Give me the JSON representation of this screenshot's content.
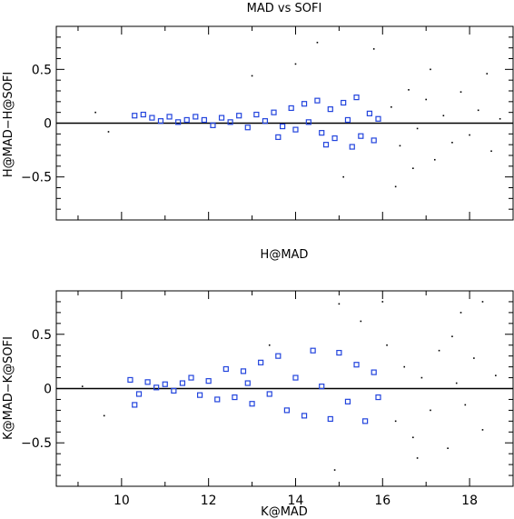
{
  "chart_data": [
    {
      "type": "scatter",
      "title": "MAD vs SOFI",
      "xlabel": "",
      "ylabel": "H@MAD−H@SOFI",
      "xlim": [
        8.5,
        19.0
      ],
      "ylim": [
        -0.9,
        0.9
      ],
      "x_ticks": [
        10,
        12,
        14,
        16,
        18
      ],
      "y_ticks": [
        -0.5,
        0,
        0.5
      ],
      "y_tick_labels": [
        "−0.5",
        "0",
        "0.5"
      ],
      "reference_line_y": 0,
      "series": [
        {
          "marker": "square",
          "points": [
            [
              10.3,
              0.07
            ],
            [
              10.5,
              0.08
            ],
            [
              10.7,
              0.05
            ],
            [
              10.9,
              0.02
            ],
            [
              11.1,
              0.06
            ],
            [
              11.3,
              0.01
            ],
            [
              11.5,
              0.03
            ],
            [
              11.7,
              0.06
            ],
            [
              11.9,
              0.03
            ],
            [
              12.1,
              -0.02
            ],
            [
              12.3,
              0.05
            ],
            [
              12.5,
              0.01
            ],
            [
              12.7,
              0.07
            ],
            [
              12.9,
              -0.04
            ],
            [
              13.1,
              0.08
            ],
            [
              13.3,
              0.02
            ],
            [
              13.5,
              0.1
            ],
            [
              13.7,
              -0.03
            ],
            [
              13.9,
              0.14
            ],
            [
              14.0,
              -0.06
            ],
            [
              14.2,
              0.18
            ],
            [
              14.3,
              0.01
            ],
            [
              14.5,
              0.21
            ],
            [
              14.6,
              -0.09
            ],
            [
              14.8,
              0.13
            ],
            [
              14.9,
              -0.14
            ],
            [
              15.1,
              0.19
            ],
            [
              15.2,
              0.03
            ],
            [
              15.4,
              0.24
            ],
            [
              15.5,
              -0.12
            ],
            [
              15.7,
              0.09
            ],
            [
              15.8,
              -0.16
            ],
            [
              15.9,
              0.04
            ],
            [
              13.6,
              -0.13
            ],
            [
              14.7,
              -0.2
            ],
            [
              15.3,
              -0.22
            ]
          ]
        },
        {
          "marker": "dot",
          "points": [
            [
              9.4,
              0.1
            ],
            [
              9.7,
              -0.08
            ],
            [
              16.2,
              0.15
            ],
            [
              16.4,
              -0.21
            ],
            [
              16.6,
              0.31
            ],
            [
              16.8,
              -0.05
            ],
            [
              17.0,
              0.22
            ],
            [
              17.2,
              -0.34
            ],
            [
              17.4,
              0.07
            ],
            [
              17.6,
              -0.18
            ],
            [
              17.8,
              0.29
            ],
            [
              18.0,
              -0.11
            ],
            [
              18.2,
              0.12
            ],
            [
              18.5,
              -0.26
            ],
            [
              18.7,
              0.04
            ],
            [
              14.5,
              0.75
            ],
            [
              15.8,
              0.69
            ],
            [
              16.3,
              -0.59
            ],
            [
              15.1,
              -0.5
            ],
            [
              17.1,
              0.5
            ],
            [
              18.4,
              0.46
            ],
            [
              13.0,
              0.44
            ],
            [
              16.7,
              -0.42
            ],
            [
              14.0,
              0.55
            ]
          ]
        }
      ]
    },
    {
      "type": "scatter",
      "title": "H@MAD",
      "xlabel": "K@MAD",
      "ylabel": "K@MAD−K@SOFI",
      "xlim": [
        8.5,
        19.0
      ],
      "ylim": [
        -0.9,
        0.9
      ],
      "x_ticks": [
        10,
        12,
        14,
        16,
        18
      ],
      "x_tick_labels": [
        "10",
        "12",
        "14",
        "16",
        "18"
      ],
      "y_ticks": [
        -0.5,
        0,
        0.5
      ],
      "y_tick_labels": [
        "−0.5",
        "0",
        "0.5"
      ],
      "reference_line_y": 0,
      "series": [
        {
          "marker": "square",
          "points": [
            [
              10.2,
              0.08
            ],
            [
              10.4,
              -0.05
            ],
            [
              10.6,
              0.06
            ],
            [
              10.8,
              0.01
            ],
            [
              11.0,
              0.04
            ],
            [
              11.2,
              -0.02
            ],
            [
              11.4,
              0.05
            ],
            [
              11.6,
              0.1
            ],
            [
              11.8,
              -0.06
            ],
            [
              12.0,
              0.07
            ],
            [
              12.2,
              -0.1
            ],
            [
              12.4,
              0.18
            ],
            [
              12.6,
              -0.08
            ],
            [
              12.8,
              0.16
            ],
            [
              13.0,
              -0.14
            ],
            [
              13.2,
              0.24
            ],
            [
              13.4,
              -0.05
            ],
            [
              13.6,
              0.3
            ],
            [
              13.8,
              -0.2
            ],
            [
              14.0,
              0.1
            ],
            [
              14.2,
              -0.25
            ],
            [
              14.4,
              0.35
            ],
            [
              14.6,
              0.02
            ],
            [
              14.8,
              -0.28
            ],
            [
              15.0,
              0.33
            ],
            [
              15.2,
              -0.12
            ],
            [
              15.4,
              0.22
            ],
            [
              15.6,
              -0.3
            ],
            [
              15.8,
              0.15
            ],
            [
              15.9,
              -0.08
            ],
            [
              10.3,
              -0.15
            ],
            [
              12.9,
              0.05
            ]
          ]
        },
        {
          "marker": "dot",
          "points": [
            [
              9.1,
              0.02
            ],
            [
              9.6,
              -0.25
            ],
            [
              16.1,
              0.4
            ],
            [
              16.3,
              -0.3
            ],
            [
              16.5,
              0.2
            ],
            [
              16.7,
              -0.45
            ],
            [
              16.9,
              0.1
            ],
            [
              17.1,
              -0.2
            ],
            [
              17.3,
              0.35
            ],
            [
              17.5,
              -0.55
            ],
            [
              17.7,
              0.05
            ],
            [
              17.9,
              -0.15
            ],
            [
              18.1,
              0.28
            ],
            [
              18.3,
              -0.38
            ],
            [
              18.6,
              0.12
            ],
            [
              15.0,
              0.78
            ],
            [
              15.5,
              0.62
            ],
            [
              16.0,
              0.8
            ],
            [
              14.9,
              -0.75
            ],
            [
              17.8,
              0.7
            ],
            [
              18.3,
              0.8
            ],
            [
              13.4,
              0.4
            ],
            [
              16.8,
              -0.64
            ],
            [
              17.6,
              0.48
            ]
          ]
        }
      ]
    }
  ],
  "colors": {
    "square_marker": "#2244dd",
    "dot_marker": "#000000",
    "axes": "#000000",
    "background": "#ffffff"
  }
}
